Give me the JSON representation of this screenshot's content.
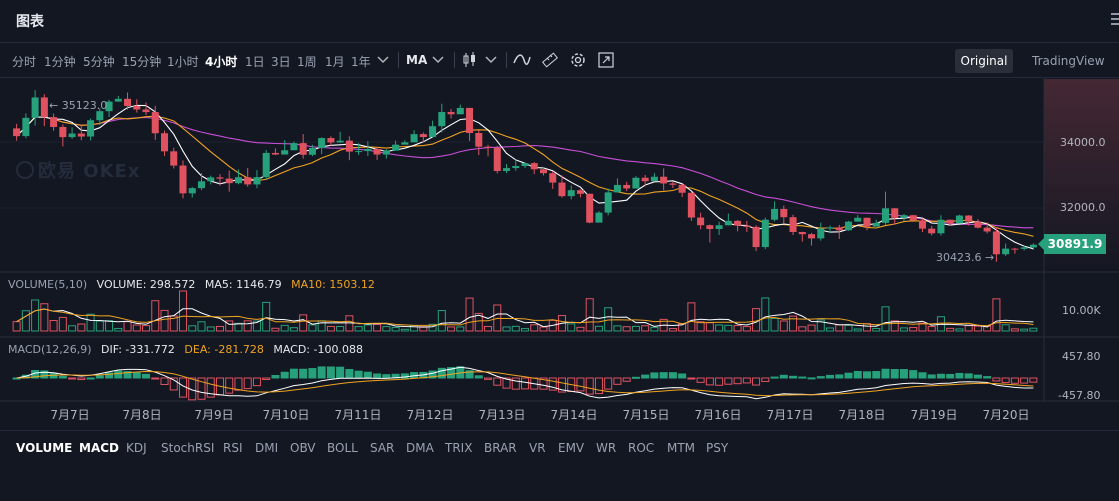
{
  "header": {
    "title": "图表"
  },
  "toolbar": {
    "timeframes": [
      "分时",
      "1分钟",
      "5分钟",
      "15分钟",
      "1小时",
      "4小时",
      "1日",
      "3日",
      "1周",
      "1月",
      "1年"
    ],
    "active_timeframe": "4小时",
    "indicator_selector": "MA",
    "view_original": "Original",
    "view_tradingview": "TradingView"
  },
  "chart": {
    "watermark": "欧易 OKEx",
    "last_price": "30891.9",
    "high_annotation": "← 35123.0",
    "low_annotation": "30423.6 →",
    "price_axis": [
      "34000.0",
      "32000.0"
    ],
    "dates": [
      "7月7日",
      "7月8日",
      "7月9日",
      "7月10日",
      "7月11日",
      "7月12日",
      "7月13日",
      "7月14日",
      "7月15日",
      "7月16日",
      "7月17日",
      "7月18日",
      "7月19日",
      "7月20日"
    ]
  },
  "volume_pane": {
    "name": "VOLUME(5,10)",
    "volume_label": "VOLUME: 298.572",
    "ma5_label": "MA5: 1146.79",
    "ma10_label": "MA10: 1503.12",
    "axis": "10.00K"
  },
  "macd_pane": {
    "name": "MACD(12,26,9)",
    "dif_label": "DIF: -331.772",
    "dea_label": "DEA: -281.728",
    "macd_label": "MACD: -100.088",
    "axis_top": "457.80",
    "axis_bottom": "-457.80"
  },
  "indicators": [
    "VOLUME",
    "MACD",
    "KDJ",
    "StochRSI",
    "RSI",
    "DMI",
    "OBV",
    "BOLL",
    "SAR",
    "DMA",
    "TRIX",
    "BRAR",
    "VR",
    "EMV",
    "WR",
    "ROC",
    "MTM",
    "PSY"
  ],
  "active_indicators": [
    "VOLUME",
    "MACD"
  ],
  "colors": {
    "up": "#26a17b",
    "down": "#e05260",
    "ma5": "#ffffff",
    "ma10": "#f0a321",
    "ma30": "#c74fd6",
    "background": "#131722"
  },
  "chart_data": {
    "type": "candlestick",
    "interval": "4h",
    "price_range": [
      30200,
      35400
    ],
    "candles": [
      [
        34075,
        33865,
        34200,
        33740
      ],
      [
        33865,
        34365,
        34486,
        33810
      ],
      [
        34365,
        34923,
        35123,
        34150
      ],
      [
        34923,
        34385,
        35011,
        34138
      ],
      [
        34385,
        34114,
        34480,
        34011
      ],
      [
        34114,
        33837,
        34184,
        33581
      ],
      [
        33837,
        33935,
        34105,
        33790
      ],
      [
        33935,
        33853,
        34187,
        33752
      ],
      [
        33853,
        34299,
        34345,
        33750
      ],
      [
        34299,
        34547,
        34623,
        34163
      ],
      [
        34547,
        34809,
        34856,
        34388
      ],
      [
        34809,
        34885,
        34963,
        34803
      ],
      [
        34885,
        34689,
        35059,
        34589
      ],
      [
        34689,
        34593,
        34871,
        34509
      ],
      [
        34593,
        34522,
        34786,
        34441
      ],
      [
        34522,
        33942,
        34690,
        33762
      ],
      [
        33942,
        33448,
        34015,
        33323
      ],
      [
        33448,
        33058,
        33548,
        32979
      ],
      [
        33058,
        32298,
        33197,
        32161
      ],
      [
        32298,
        32440,
        32475,
        32186
      ],
      [
        32440,
        32628,
        32855,
        32386
      ],
      [
        32628,
        32735,
        32782,
        32544
      ],
      [
        32735,
        32701,
        32823,
        32509
      ],
      [
        32701,
        32576,
        32919,
        32343
      ],
      [
        32576,
        32739,
        32952,
        32544
      ],
      [
        32739,
        32542,
        32992,
        32479
      ],
      [
        32542,
        32741,
        32936,
        32437
      ],
      [
        32741,
        33404,
        33485,
        32677
      ],
      [
        33404,
        33360,
        33528,
        33343
      ],
      [
        33360,
        33477,
        33755,
        33429
      ],
      [
        33477,
        33673,
        33714,
        33548
      ],
      [
        33673,
        33354,
        33921,
        33246
      ],
      [
        33354,
        33541,
        33628,
        33314
      ],
      [
        33541,
        33811,
        33831,
        33375
      ],
      [
        33811,
        33690,
        33859,
        33598
      ],
      [
        33690,
        33740,
        33982,
        33678
      ],
      [
        33740,
        33440,
        33858,
        33206
      ],
      [
        33440,
        33455,
        33669,
        33350
      ],
      [
        33455,
        33514,
        33723,
        33320
      ],
      [
        33514,
        33360,
        33567,
        33212
      ],
      [
        33360,
        33467,
        33509,
        33249
      ],
      [
        33467,
        33630,
        33743,
        33555
      ],
      [
        33630,
        33694,
        33750,
        33642
      ],
      [
        33694,
        33919,
        34026,
        33760
      ],
      [
        33919,
        33839,
        33963,
        33692
      ],
      [
        33839,
        34136,
        34287,
        34000
      ],
      [
        34136,
        34525,
        34749,
        33970
      ],
      [
        34525,
        34462,
        34609,
        34346
      ],
      [
        34462,
        34636,
        34724,
        34510
      ],
      [
        34636,
        33949,
        34639,
        33730
      ],
      [
        33949,
        33575,
        34028,
        33345
      ],
      [
        33575,
        33546,
        33626,
        33312
      ],
      [
        33546,
        32909,
        33597,
        32843
      ],
      [
        32909,
        32989,
        33103,
        32849
      ],
      [
        32989,
        33046,
        33223,
        32917
      ],
      [
        33046,
        33124,
        33140,
        32989
      ],
      [
        33124,
        32956,
        33155,
        32826
      ],
      [
        32956,
        32850,
        33022,
        32787
      ],
      [
        32850,
        32592,
        32905,
        32419
      ],
      [
        32592,
        32221,
        32784,
        32182
      ],
      [
        32221,
        32384,
        32514,
        32133
      ],
      [
        32384,
        32285,
        32410,
        32188
      ],
      [
        32285,
        31497,
        32296,
        31480
      ],
      [
        31497,
        31771,
        31810,
        31603
      ],
      [
        31771,
        32325,
        32427,
        31696
      ],
      [
        32325,
        32528,
        32708,
        32453
      ],
      [
        32528,
        32431,
        32614,
        32356
      ],
      [
        32431,
        32725,
        32767,
        32568
      ],
      [
        32725,
        32629,
        32803,
        32487
      ],
      [
        32629,
        32753,
        32851,
        32643
      ],
      [
        32753,
        32568,
        32979,
        32382
      ],
      [
        32568,
        32533,
        32615,
        32444
      ],
      [
        32533,
        32314,
        32553,
        32196
      ],
      [
        32314,
        31636,
        32327,
        31542
      ],
      [
        31636,
        31425,
        31769,
        31314
      ],
      [
        31425,
        31322,
        31444,
        30951
      ],
      [
        31322,
        31425,
        31521,
        31160
      ],
      [
        31425,
        31545,
        31745,
        31419
      ],
      [
        31545,
        31415,
        31567,
        31258
      ],
      [
        31415,
        31380,
        31545,
        31241
      ],
      [
        31380,
        30827,
        31424,
        30718
      ],
      [
        30827,
        31576,
        31634,
        30770
      ],
      [
        31576,
        31871,
        32079,
        31534
      ],
      [
        31871,
        31645,
        31964,
        31483
      ],
      [
        31645,
        31240,
        31713,
        31158
      ],
      [
        31240,
        31180,
        31249,
        30976
      ],
      [
        31180,
        31065,
        31214,
        30868
      ],
      [
        31065,
        31334,
        31496,
        31001
      ],
      [
        31334,
        31368,
        31417,
        31208
      ],
      [
        31368,
        31287,
        31435,
        31051
      ],
      [
        31287,
        31524,
        31545,
        31273
      ],
      [
        31524,
        31629,
        31703,
        31584
      ],
      [
        31629,
        31386,
        31633,
        31289
      ],
      [
        31386,
        31491,
        31578,
        31428
      ],
      [
        31491,
        31888,
        32346,
        31435
      ],
      [
        31888,
        31628,
        31896,
        31439
      ],
      [
        31628,
        31700,
        31734,
        31537
      ],
      [
        31700,
        31558,
        31710,
        31512
      ],
      [
        31558,
        31331,
        31615,
        31236
      ],
      [
        31331,
        31204,
        31403,
        31149
      ],
      [
        31204,
        31575,
        31700,
        31144
      ],
      [
        31575,
        31474,
        31582,
        31424
      ],
      [
        31474,
        31691,
        31712,
        31610
      ],
      [
        31691,
        31525,
        31703,
        31417
      ],
      [
        31525,
        31359,
        31591,
        31336
      ],
      [
        31359,
        31255,
        31508,
        31203
      ],
      [
        31255,
        30631,
        31367,
        30423
      ],
      [
        30631,
        30785,
        30924,
        30584
      ],
      [
        30785,
        30779,
        30806,
        30646
      ],
      [
        30779,
        30819,
        30862,
        30734
      ],
      [
        30819,
        30892,
        30929,
        30752
      ]
    ],
    "volume_axis": "10.00K",
    "macd_axis": [
      457.8,
      -457.8
    ],
    "last": {
      "volume": 298.572,
      "ma5": 1146.79,
      "ma10": 1503.12,
      "dif": -331.772,
      "dea": -281.728,
      "macd": -100.088
    }
  }
}
